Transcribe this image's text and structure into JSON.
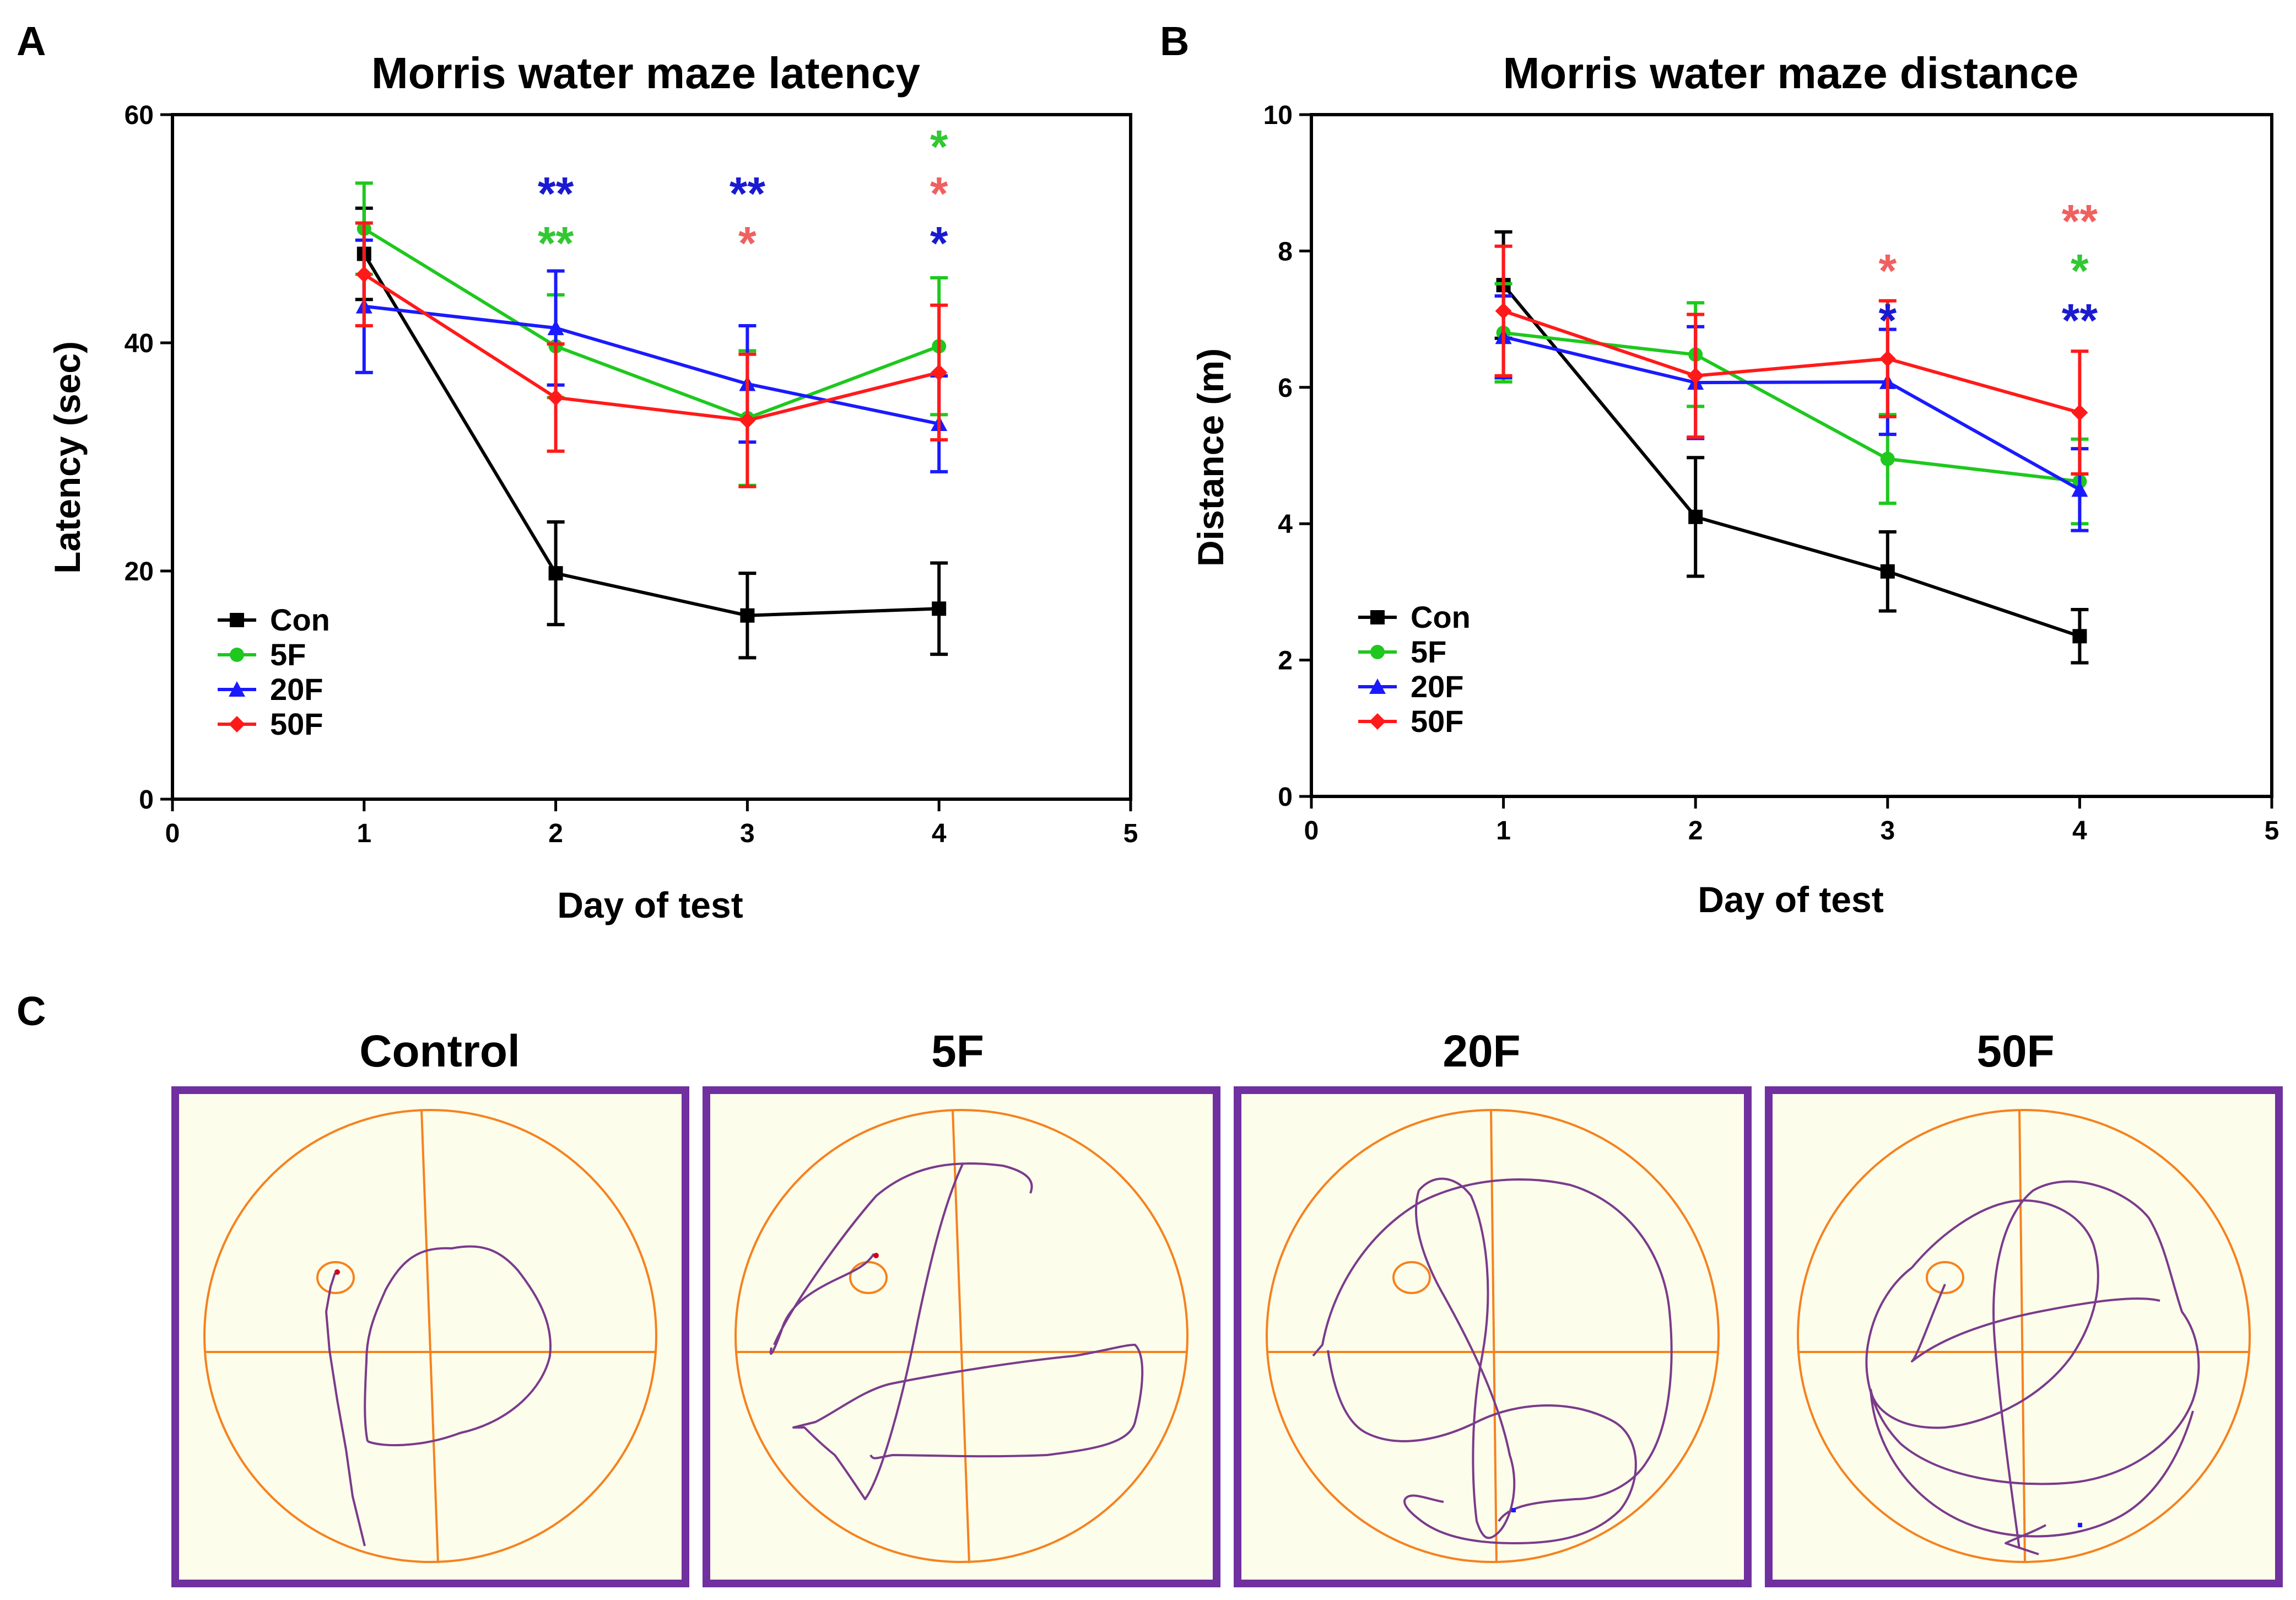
{
  "chart_data": [
    {
      "panel": "A",
      "type": "line",
      "title": "Morris water maze latency",
      "xlabel": "Day of test",
      "ylabel": "Latency (sec)",
      "xlim": [
        0,
        5
      ],
      "ylim": [
        0,
        60
      ],
      "xticks": [
        "0",
        "1",
        "2",
        "3",
        "4",
        "5"
      ],
      "yticks": [
        "0",
        "20",
        "40",
        "60"
      ],
      "legend_position": "bottom-left",
      "x": [
        1,
        2,
        3,
        4
      ],
      "series": [
        {
          "name": "Con",
          "color": "#000000",
          "marker": "square",
          "values": [
            47.8,
            19.8,
            16.1,
            16.7
          ],
          "errors": [
            4.0,
            4.5,
            3.7,
            4.0
          ]
        },
        {
          "name": "5F",
          "color": "#1ec81e",
          "marker": "circle",
          "values": [
            50.0,
            39.7,
            33.4,
            39.7
          ],
          "errors": [
            4.0,
            4.5,
            5.9,
            6.0
          ]
        },
        {
          "name": "20F",
          "color": "#1a1aff",
          "marker": "triangle",
          "values": [
            43.2,
            41.3,
            36.4,
            32.9
          ],
          "errors": [
            5.8,
            5.0,
            5.1,
            4.2
          ]
        },
        {
          "name": "50F",
          "color": "#ff1a1a",
          "marker": "diamond",
          "values": [
            46.0,
            35.2,
            33.2,
            37.4
          ],
          "errors": [
            4.5,
            4.7,
            5.8,
            5.9
          ]
        }
      ],
      "annotations": [
        {
          "x": 2,
          "y_level": 2,
          "text": "**",
          "color": "#1a1ad0"
        },
        {
          "x": 2,
          "y_level": 1,
          "text": "**",
          "color": "#32c832"
        },
        {
          "x": 3,
          "y_level": 2,
          "text": "**",
          "color": "#1a1ad0"
        },
        {
          "x": 3,
          "y_level": 1,
          "text": "*",
          "color": "#f06060"
        },
        {
          "x": 4,
          "y_level": 3,
          "text": "*",
          "color": "#32c832"
        },
        {
          "x": 4,
          "y_level": 2,
          "text": "*",
          "color": "#f06060"
        },
        {
          "x": 4,
          "y_level": 1,
          "text": "*",
          "color": "#1a1ad0"
        }
      ]
    },
    {
      "panel": "B",
      "type": "line",
      "title": "Morris water maze distance",
      "xlabel": "Day of test",
      "ylabel": "Distance (m)",
      "xlim": [
        0,
        5
      ],
      "ylim": [
        0,
        10
      ],
      "xticks": [
        "0",
        "1",
        "2",
        "3",
        "4",
        "5"
      ],
      "yticks": [
        "0",
        "2",
        "4",
        "6",
        "8",
        "10"
      ],
      "legend_position": "bottom-left",
      "x": [
        1,
        2,
        3,
        4
      ],
      "series": [
        {
          "name": "Con",
          "color": "#000000",
          "marker": "square",
          "values": [
            7.5,
            4.1,
            3.3,
            2.35
          ],
          "errors": [
            0.78,
            0.87,
            0.58,
            0.39
          ]
        },
        {
          "name": "5F",
          "color": "#1ec81e",
          "marker": "circle",
          "values": [
            6.8,
            6.48,
            4.95,
            4.62
          ],
          "errors": [
            0.72,
            0.76,
            0.65,
            0.62
          ]
        },
        {
          "name": "20F",
          "color": "#1a1aff",
          "marker": "triangle",
          "values": [
            6.74,
            6.07,
            6.08,
            4.5
          ],
          "errors": [
            0.6,
            0.82,
            0.77,
            0.6
          ]
        },
        {
          "name": "50F",
          "color": "#ff1a1a",
          "marker": "diamond",
          "values": [
            7.12,
            6.17,
            6.42,
            5.63
          ],
          "errors": [
            0.95,
            0.9,
            0.85,
            0.9
          ]
        }
      ],
      "annotations": [
        {
          "x": 3,
          "y_level": 2,
          "text": "*",
          "color": "#f06060"
        },
        {
          "x": 3,
          "y_level": 1,
          "text": "*",
          "color": "#1a1ad0"
        },
        {
          "x": 4,
          "y_level": 3,
          "text": "**",
          "color": "#f06060"
        },
        {
          "x": 4,
          "y_level": 2,
          "text": "*",
          "color": "#32c832"
        },
        {
          "x": 4,
          "y_level": 1,
          "text": "**",
          "color": "#1a1ad0"
        }
      ]
    }
  ],
  "panel_c": {
    "letter": "C",
    "tracks": [
      {
        "label": "Control"
      },
      {
        "label": "5F"
      },
      {
        "label": "20F"
      },
      {
        "label": "50F"
      }
    ],
    "colors": {
      "frame": "#7030a0",
      "pool": "#f5821f",
      "path": "#7a3b8c",
      "background": "#fdfdeb"
    }
  },
  "panel_a_letter": "A",
  "panel_b_letter": "B"
}
